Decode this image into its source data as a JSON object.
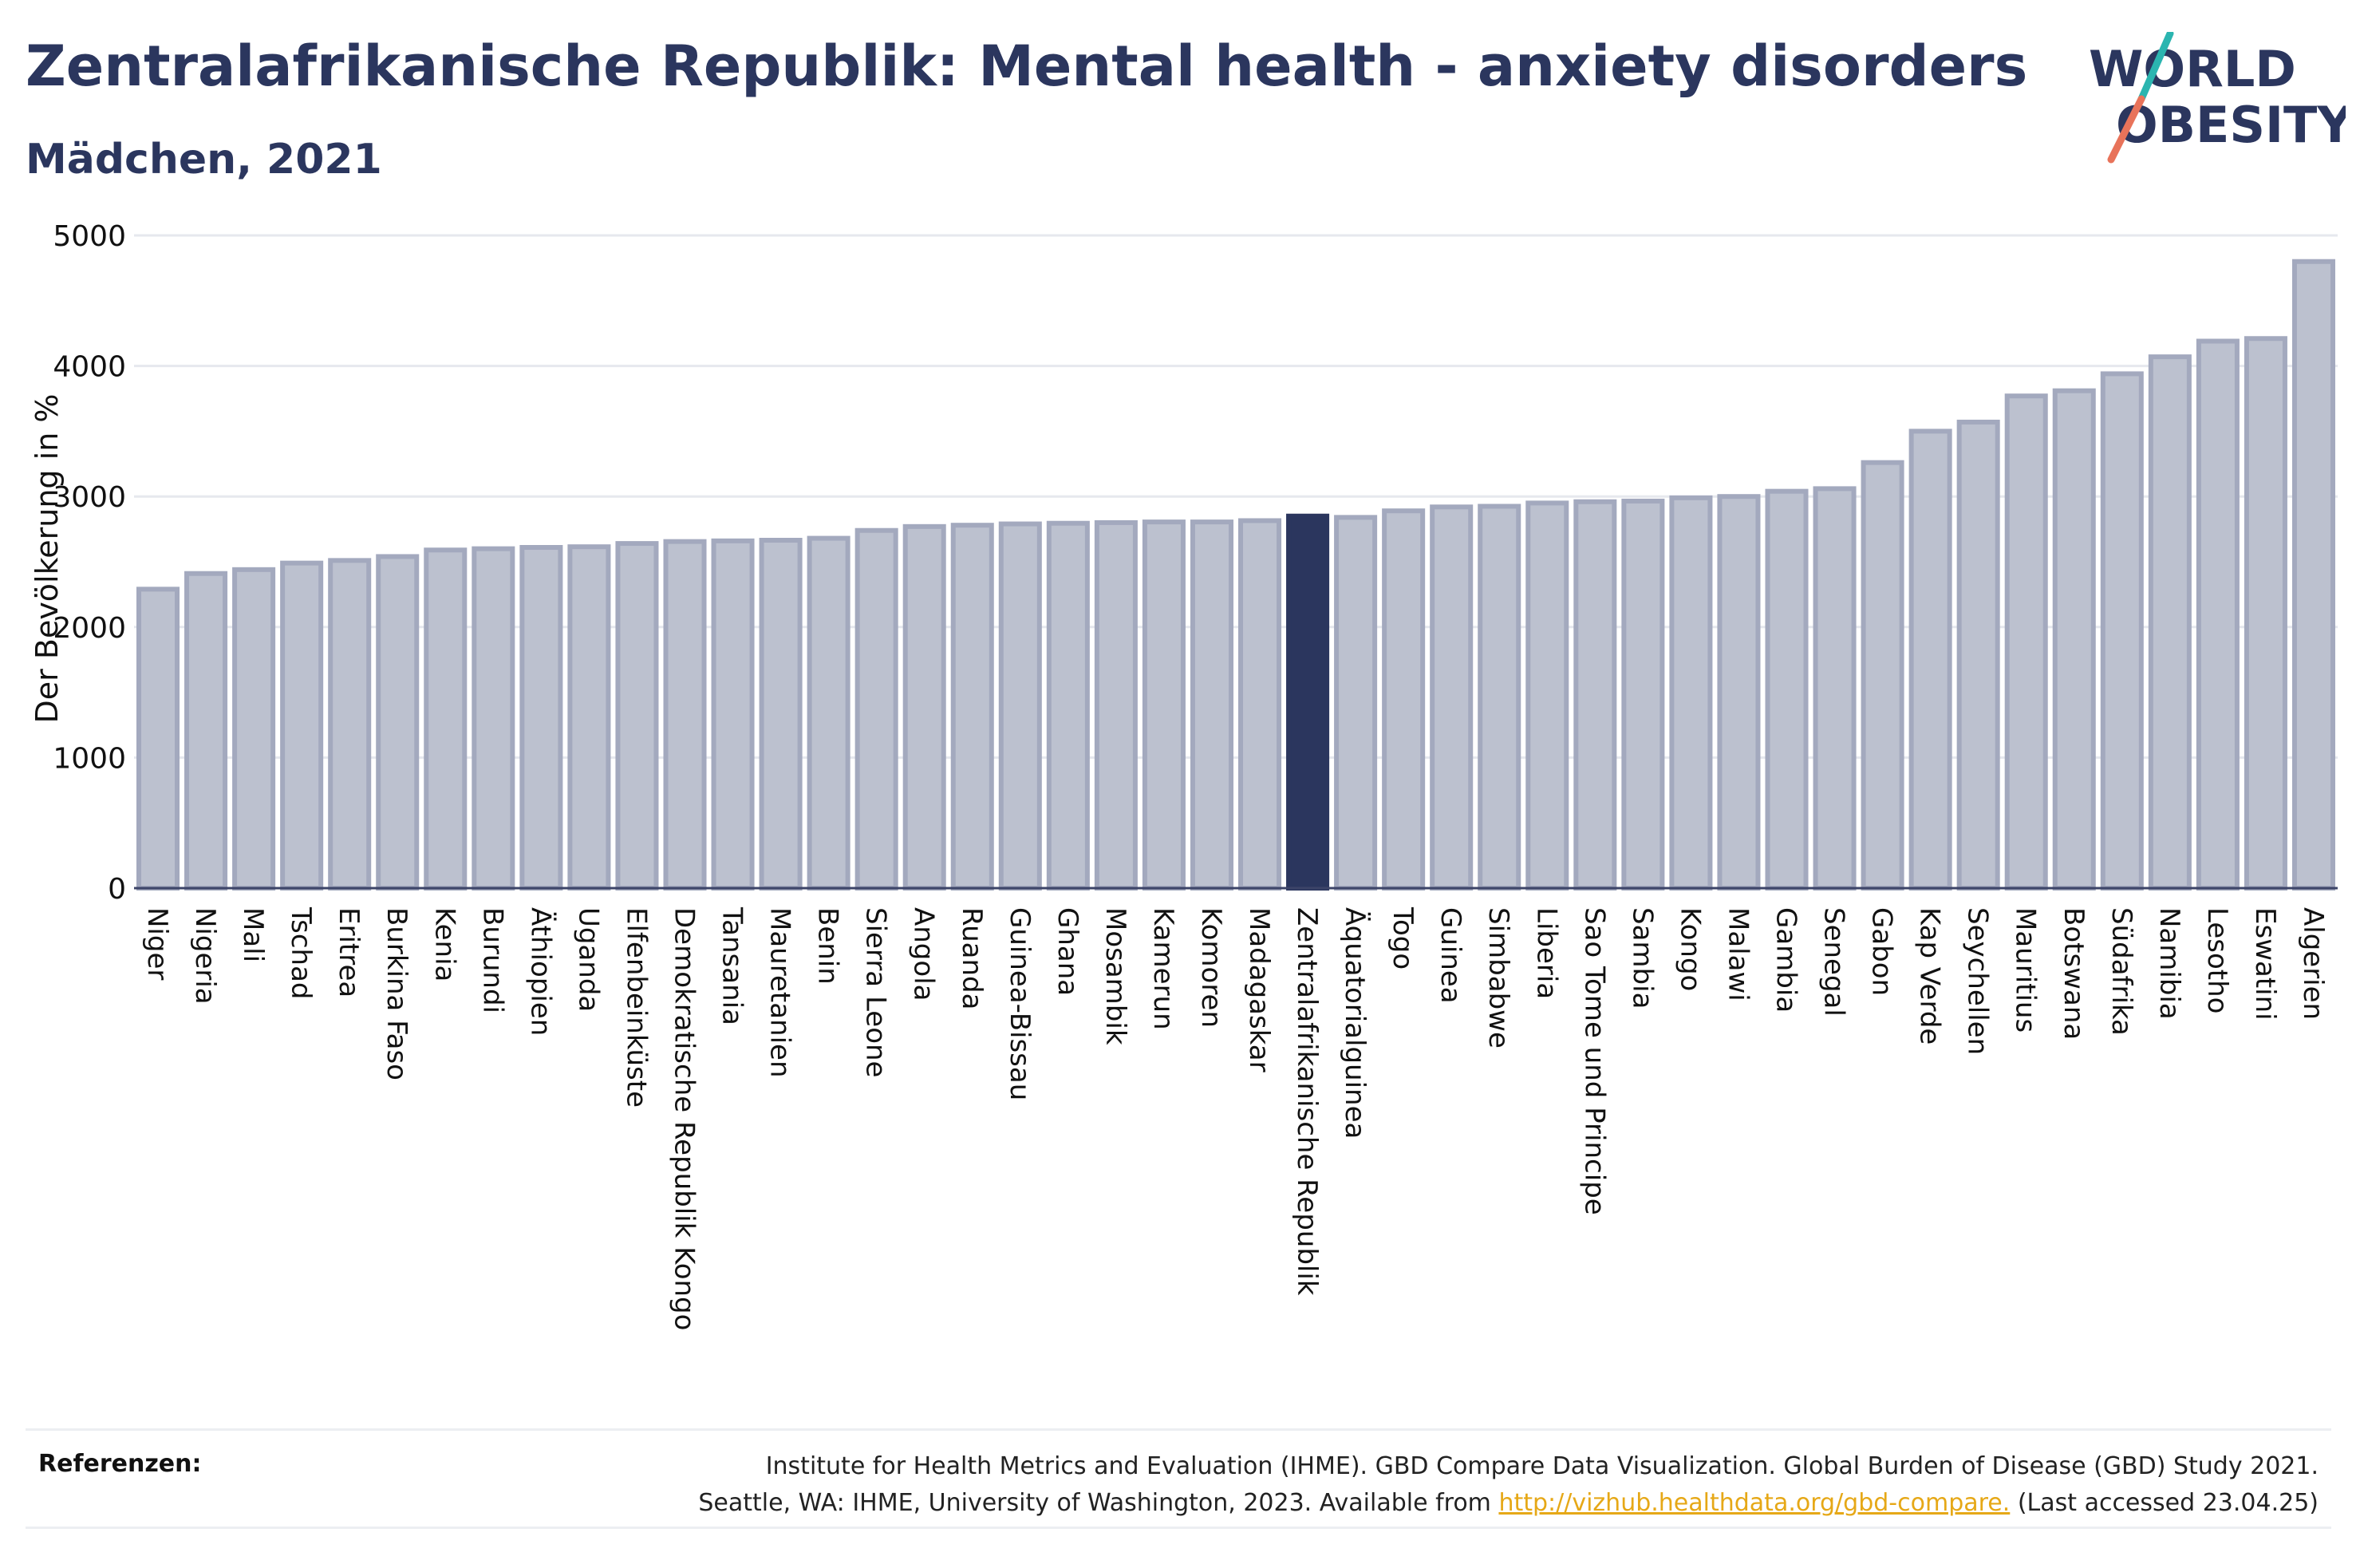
{
  "header": {
    "title": "Zentralafrikanische Republik: Mental health - anxiety disorders",
    "subtitle": "Mädchen, 2021"
  },
  "logo": {
    "line1": "WORLD",
    "line2": "OBESITY",
    "colors": {
      "text": "#2b365e",
      "slash_top": "#2bb5b0",
      "slash_bottom": "#e8735a"
    }
  },
  "chart_data": {
    "type": "bar",
    "ylabel": "Der Bevölkerung in %",
    "ylim": [
      0,
      5000
    ],
    "yticks": [
      0,
      1000,
      2000,
      3000,
      4000,
      5000
    ],
    "grid": true,
    "highlight": "Zentralafrikanische Republik",
    "colors": {
      "bar": "#bcc1cf",
      "bar_border": "#a3a9be",
      "highlight": "#2b365e",
      "grid": "#e6e8ee"
    },
    "categories": [
      "Niger",
      "Nigeria",
      "Mali",
      "Tschad",
      "Eritrea",
      "Burkina Faso",
      "Kenia",
      "Burundi",
      "Äthiopien",
      "Uganda",
      "Elfenbeinküste",
      "Demokratische Republik Kongo",
      "Tansania",
      "Mauretanien",
      "Benin",
      "Sierra Leone",
      "Angola",
      "Ruanda",
      "Guinea-Bissau",
      "Ghana",
      "Mosambik",
      "Kamerun",
      "Komoren",
      "Madagaskar",
      "Zentralafrikanische Republik",
      "Äquatorialguinea",
      "Togo",
      "Guinea",
      "Simbabwe",
      "Liberia",
      "Sao Tome und Principe",
      "Sambia",
      "Kongo",
      "Malawi",
      "Gambia",
      "Senegal",
      "Gabon",
      "Kap Verde",
      "Seychellen",
      "Mauritius",
      "Botswana",
      "Südafrika",
      "Namibia",
      "Lesotho",
      "Eswatini",
      "Algerien"
    ],
    "values": [
      2290,
      2410,
      2440,
      2490,
      2510,
      2540,
      2590,
      2600,
      2610,
      2615,
      2640,
      2655,
      2660,
      2665,
      2680,
      2740,
      2770,
      2780,
      2790,
      2795,
      2800,
      2805,
      2805,
      2815,
      2850,
      2840,
      2890,
      2920,
      2925,
      2950,
      2960,
      2965,
      2990,
      3000,
      3040,
      3060,
      3260,
      3500,
      3570,
      3770,
      3810,
      3940,
      4070,
      4190,
      4210,
      4800
    ]
  },
  "references": {
    "label": "Referenzen:",
    "line1": "Institute for Health Metrics and Evaluation (IHME). GBD Compare Data Visualization. Global Burden of Disease (GBD) Study 2021.",
    "line2_before": "Seattle, WA: IHME, University of Washington, 2023. Available from ",
    "link": "http://vizhub.healthdata.org/gbd-compare.",
    "line2_after": " (Last accessed 23.04.25)"
  }
}
